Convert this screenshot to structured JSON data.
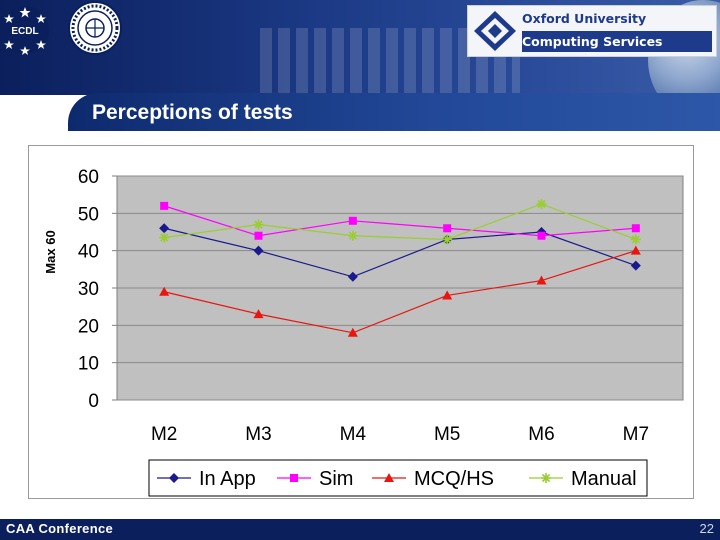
{
  "header": {
    "ecdl_label": "ECDL",
    "oxford_line1": "Oxford University",
    "oxford_line2": "Computing Services"
  },
  "slide": {
    "title": "Perceptions of tests"
  },
  "footer": {
    "left": "CAA Conference",
    "page_number": "22"
  },
  "colors": {
    "in_app": "#1a1a8c",
    "sim": "#ff00ff",
    "mcq": "#e8160e",
    "manual": "#9acd32",
    "plot_bg": "#c0c0c0"
  },
  "chart_data": {
    "type": "line",
    "categories": [
      "M2",
      "M3",
      "M4",
      "M5",
      "M6",
      "M7"
    ],
    "ylabel": "Max 60",
    "ylim": [
      0,
      60
    ],
    "yticks": [
      0,
      10,
      20,
      30,
      40,
      50,
      60
    ],
    "grid": true,
    "legend_position": "bottom",
    "series": [
      {
        "name": "In App",
        "values": [
          46,
          40,
          33,
          43,
          45,
          36
        ],
        "marker": "diamond",
        "color": "#1a1a8c"
      },
      {
        "name": "Sim",
        "values": [
          52,
          44,
          48,
          46,
          44,
          46
        ],
        "marker": "square",
        "color": "#ff00ff"
      },
      {
        "name": "MCQ/HS",
        "values": [
          29,
          23,
          18,
          28,
          32,
          40
        ],
        "marker": "triangle",
        "color": "#e8160e"
      },
      {
        "name": "Manual",
        "values": [
          43.5,
          47,
          44,
          43,
          52.5,
          43
        ],
        "marker": "star",
        "color": "#9acd32"
      }
    ]
  }
}
